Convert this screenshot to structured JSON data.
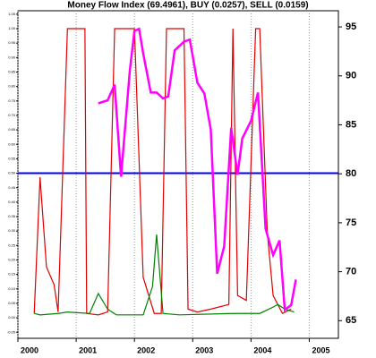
{
  "chart_data": {
    "type": "line",
    "title": "Money Flow Index (69.4961), BUY (0.0257), SELL (0.0159)",
    "xlim": [
      2000,
      2005.5
    ],
    "xticks": [
      2000,
      2001,
      2002,
      2003,
      2004,
      2005
    ],
    "ylim": [
      -0.071,
      1.062
    ],
    "yticks": [
      {
        "value": -0.05,
        "label": "-0.05"
      },
      {
        "value": 0,
        "label": "0.00"
      },
      {
        "value": 0.05,
        "label": "0.05"
      },
      {
        "value": 0.1,
        "label": "0.10"
      },
      {
        "value": 0.15,
        "label": "0.15"
      },
      {
        "value": 0.2,
        "label": "0.20"
      },
      {
        "value": 0.25,
        "label": "0.25"
      },
      {
        "value": 0.3,
        "label": "0.30"
      },
      {
        "value": 0.35,
        "label": "0.35"
      },
      {
        "value": 0.4,
        "label": "0.40"
      },
      {
        "value": 0.45,
        "label": "0.45"
      },
      {
        "value": 0.5,
        "label": "0.50"
      },
      {
        "value": 0.55,
        "label": "0.55"
      },
      {
        "value": 0.6,
        "label": "0.60"
      },
      {
        "value": 0.65,
        "label": "0.65"
      },
      {
        "value": 0.7,
        "label": "0.70"
      },
      {
        "value": 0.75,
        "label": "0.75"
      },
      {
        "value": 0.8,
        "label": "0.80"
      },
      {
        "value": 0.85,
        "label": "0.85"
      },
      {
        "value": 0.9,
        "label": "0.90"
      },
      {
        "value": 0.95,
        "label": "0.95"
      },
      {
        "value": 1,
        "label": "1.00"
      },
      {
        "value": 1.05,
        "label": "1.05"
      }
    ],
    "y2lim": [
      63.2,
      96.65
    ],
    "y2ticks": [
      65,
      70,
      75,
      80,
      85,
      90,
      95
    ],
    "reference_line": {
      "value": 0.5,
      "color": "#0000ff"
    },
    "grid": true,
    "series": [
      {
        "color": "#e00000",
        "x": [
          2000.28,
          2000.38,
          2000.49,
          2000.62,
          2000.69,
          2000.85,
          2001.15,
          2001.18,
          2001.38,
          2001.54,
          2001.66,
          2002.0,
          2002.15,
          2002.34,
          2002.46,
          2002.55,
          2002.85,
          2002.92,
          2003.08,
          2003.31,
          2003.62,
          2003.69,
          2003.77,
          2003.92,
          2004.08,
          2004.15,
          2004.28,
          2004.38,
          2004.54,
          2004.69
        ],
        "values": [
          0.015,
          0.486,
          0.176,
          0.115,
          0.02,
          1.0,
          1.0,
          0.015,
          0.01,
          0.02,
          1.0,
          1.0,
          0.14,
          0.015,
          0.015,
          1.0,
          1.0,
          0.03,
          0.02,
          0.03,
          0.046,
          1.0,
          0.077,
          0.06,
          1.0,
          1.0,
          0.294,
          0.077,
          0.015,
          0.03
        ]
      },
      {
        "color": "#008000",
        "x": [
          2000.28,
          2000.38,
          2000.69,
          2000.85,
          2001.23,
          2001.38,
          2001.54,
          2001.69,
          2002.15,
          2002.31,
          2002.38,
          2002.49,
          2002.77,
          2003.69,
          2004.15,
          2004.38,
          2004.46,
          2004.58,
          2004.74
        ],
        "values": [
          0.015,
          0.01,
          0.015,
          0.02,
          0.015,
          0.084,
          0.03,
          0.01,
          0.01,
          0.108,
          0.288,
          0.015,
          0.01,
          0.015,
          0.015,
          0.037,
          0.046,
          0.03,
          0.02
        ]
      },
      {
        "color": "#ff00ff",
        "axis": "y2",
        "x": [
          2001.38,
          2001.54,
          2001.66,
          2001.77,
          2001.92,
          2002.0,
          2002.08,
          2002.15,
          2002.28,
          2002.38,
          2002.49,
          2002.58,
          2002.69,
          2002.85,
          2002.95,
          2003.08,
          2003.2,
          2003.31,
          2003.42,
          2003.54,
          2003.66,
          2003.77,
          2003.85,
          2004.0,
          2004.12,
          2004.25,
          2004.38,
          2004.49,
          2004.58,
          2004.69,
          2004.77
        ],
        "values": [
          87.2,
          87.5,
          89.1,
          79.7,
          90.5,
          94.6,
          94.8,
          92.3,
          88.3,
          88.3,
          87.7,
          87.9,
          92.6,
          93.5,
          93.7,
          89.3,
          88.2,
          84.5,
          69.8,
          72.6,
          84.7,
          79.9,
          83.6,
          85.4,
          88.3,
          74.4,
          71.7,
          73.2,
          66.1,
          66.6,
          69.2
        ]
      }
    ]
  }
}
